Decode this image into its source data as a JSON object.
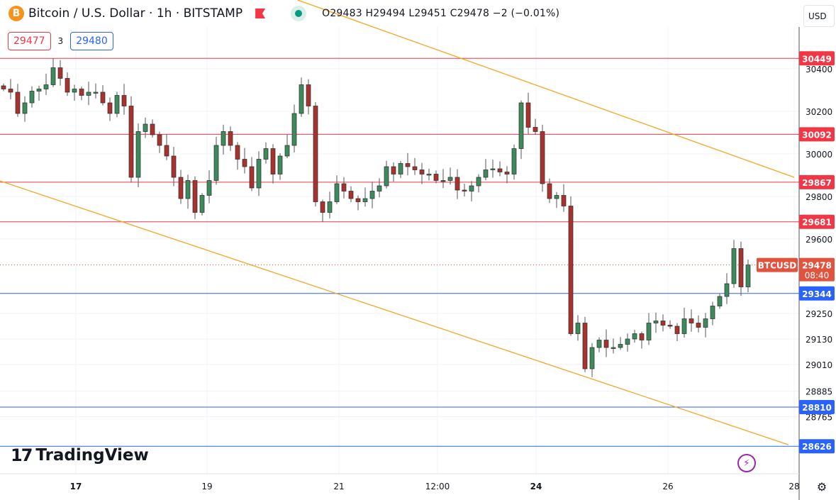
{
  "header": {
    "coin_icon": "B",
    "title": "Bitcoin / U.S. Dollar · 1h · BITSTAMP",
    "ohlc": "O29483 H29494 L29451 C29478 −2 (−0.01%)",
    "sell_price": "29477",
    "spread": "3",
    "buy_price": "29480",
    "currency": "USD"
  },
  "branding": {
    "logo_mark": "17",
    "logo_text": "TradingView"
  },
  "icons": {
    "lightning": "⚡",
    "settings": "⚙"
  },
  "colors": {
    "up": "#3d8a5c",
    "down": "#a8322d",
    "resistance": "#f23645",
    "support": "#2962ff",
    "trend": "#f5a623",
    "last": "#e0533f"
  },
  "chart_data": {
    "type": "candlestick",
    "symbol": "BTCUSD",
    "timeframe": "1h",
    "last_price": "29478",
    "countdown": "08:40",
    "ylim": [
      28580,
      30720
    ],
    "y_ticks": [
      "30400",
      "30200",
      "30000",
      "29800",
      "29600",
      "29250",
      "29130",
      "29010",
      "28885",
      "28765"
    ],
    "y_tick_values": [
      30400,
      30200,
      30000,
      29800,
      29600,
      29250,
      29130,
      29010,
      28885,
      28765
    ],
    "x_ticks": [
      "17",
      "19",
      "21",
      "12:00",
      "24",
      "26",
      "28"
    ],
    "x_tick_index": [
      10.2,
      28.7,
      47.3,
      61.2,
      75.1,
      93.7,
      111.5
    ],
    "closes": [
      30305,
      30290,
      30190,
      30240,
      30295,
      30305,
      30325,
      30405,
      30355,
      30290,
      30305,
      30275,
      30290,
      30290,
      30240,
      30190,
      30275,
      30225,
      29890,
      30105,
      30140,
      30090,
      30040,
      29990,
      29890,
      29790,
      29875,
      29725,
      29805,
      29875,
      30040,
      30105,
      30040,
      29975,
      29940,
      29840,
      29975,
      30025,
      29905,
      29990,
      30040,
      30190,
      30325,
      30225,
      29775,
      29725,
      29775,
      29860,
      29825,
      29790,
      29775,
      29790,
      29825,
      29850,
      29940,
      29905,
      29955,
      29940,
      29925,
      29905,
      29905,
      29875,
      29875,
      29890,
      29830,
      29825,
      29850,
      29890,
      29925,
      29930,
      29915,
      29905,
      30025,
      30240,
      30125,
      30105,
      29860,
      29790,
      29805,
      29755,
      29155,
      29205,
      28990,
      29090,
      29125,
      29090,
      29090,
      29105,
      29130,
      29155,
      29125,
      29205,
      29215,
      29195,
      29190,
      29155,
      29225,
      29205,
      29185,
      29225,
      29285,
      29330,
      29390,
      29555,
      29375,
      29478
    ],
    "levels": [
      {
        "price": 30449,
        "label": "30449",
        "kind": "resistance"
      },
      {
        "price": 30092,
        "label": "30092",
        "kind": "resistance"
      },
      {
        "price": 29867,
        "label": "29867",
        "kind": "resistance"
      },
      {
        "price": 29681,
        "label": "29681",
        "kind": "resistance"
      },
      {
        "price": 29344,
        "label": "29344",
        "kind": "support"
      },
      {
        "price": 28810,
        "label": "28810",
        "kind": "support"
      },
      {
        "price": 28626,
        "label": "28626",
        "kind": "support"
      }
    ],
    "trendlines": [
      {
        "name": "upper-channel",
        "from": [
          41.5,
          30723
        ],
        "to": [
          111.5,
          29890
        ]
      },
      {
        "name": "lower-channel",
        "from": [
          -0.5,
          29873
        ],
        "to": [
          110.7,
          28633
        ]
      }
    ]
  }
}
